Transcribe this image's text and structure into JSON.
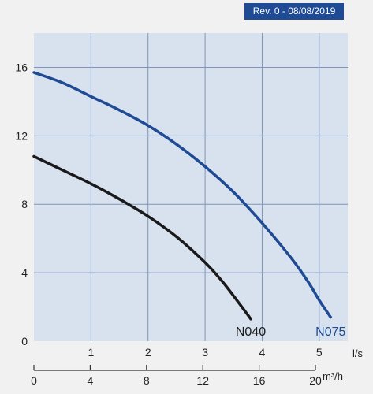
{
  "badge": {
    "text": "Rev. 0 - 08/08/2019",
    "color": "#1f4a94"
  },
  "chart_data": {
    "type": "line",
    "title": "",
    "xlabel": "",
    "ylabel": "",
    "primary_x_axis": {
      "unit": "l/s",
      "ticks": [
        0,
        1,
        2,
        3,
        4,
        5
      ],
      "range": [
        0,
        5.5
      ]
    },
    "secondary_x_axis": {
      "unit": "m³/h",
      "ticks": [
        0,
        4,
        8,
        12,
        16,
        20
      ],
      "range": [
        0,
        19.8
      ]
    },
    "ylim": [
      0,
      18
    ],
    "y_ticks": [
      0,
      4,
      8,
      12,
      16
    ],
    "grid": true,
    "series": [
      {
        "name": "N040",
        "color": "#1a1a1a",
        "x": [
          0,
          0.5,
          1,
          1.5,
          2,
          2.5,
          3,
          3.3,
          3.6,
          3.8
        ],
        "y": [
          10.8,
          10.0,
          9.2,
          8.3,
          7.3,
          6.1,
          4.6,
          3.5,
          2.2,
          1.3
        ]
      },
      {
        "name": "N075",
        "color": "#1f4a94",
        "x": [
          0,
          0.5,
          1,
          1.5,
          2,
          2.5,
          3,
          3.5,
          4,
          4.5,
          4.8,
          5.0,
          5.2
        ],
        "y": [
          15.7,
          15.1,
          14.3,
          13.5,
          12.6,
          11.5,
          10.2,
          8.7,
          6.9,
          4.9,
          3.5,
          2.4,
          1.4
        ]
      }
    ]
  }
}
